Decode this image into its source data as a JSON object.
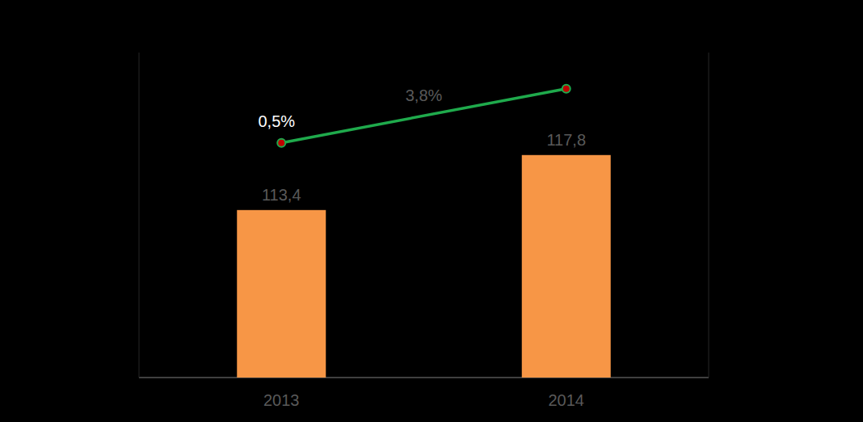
{
  "chart_data": {
    "type": "bar",
    "categories": [
      "2013",
      "2014"
    ],
    "series": [
      {
        "type": "bar",
        "color": "#f79646",
        "values": [
          113.4,
          117.8
        ],
        "value_labels": [
          "113,4",
          "117,8"
        ]
      },
      {
        "type": "line",
        "color": "#1faa4c",
        "marker": "circle",
        "axis": "y2",
        "values": [
          0.5,
          3.8
        ],
        "value_labels": [
          "0,5%",
          "3,8%"
        ]
      }
    ],
    "ylim": [
      100,
      126
    ],
    "y2lim": [
      -13.8,
      6
    ],
    "grid": false,
    "data_labels": true,
    "tick_labels": "x"
  }
}
